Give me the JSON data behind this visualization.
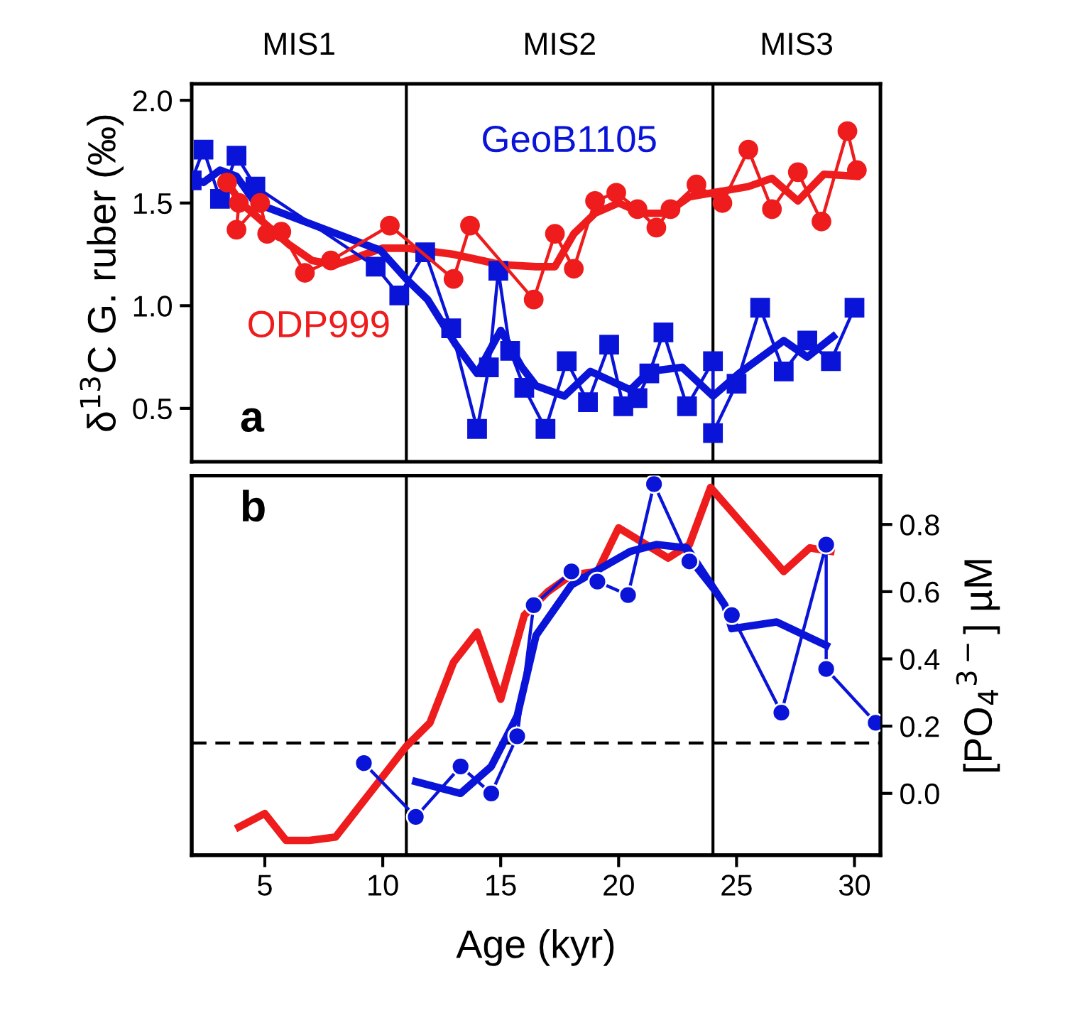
{
  "chart_data": [
    {
      "type": "line",
      "ylabel": "δ$^{13}$C G. ruber (‰)",
      "annotations": [
        "a",
        "MIS1",
        "MIS2",
        "MIS3"
      ],
      "xlim": [
        1.9,
        31.1
      ],
      "ylim": [
        0.24,
        2.08
      ],
      "yticks": [
        {
          "value": 0.5,
          "label": "0.5"
        },
        {
          "value": 1.0,
          "label": "1.0"
        },
        {
          "value": 1.5,
          "label": "1.5"
        },
        {
          "value": 2.0,
          "label": "2.0"
        }
      ],
      "tick_labels": "y",
      "grid": false,
      "legend": false,
      "ref_lines": [
        {
          "axis": "x",
          "value": 11,
          "color": "#000000",
          "line_style": "solid"
        },
        {
          "axis": "x",
          "value": 24,
          "color": "#000000",
          "line_style": "solid"
        }
      ],
      "series": [
        {
          "name": "ODP999",
          "color": "#ee1c1c",
          "marker": "circle",
          "x": [
            3.4,
            3.9,
            3.8,
            4.8,
            5.1,
            5.7,
            6.7,
            7.8,
            10.3,
            13.0,
            13.7,
            16.4,
            17.3,
            18.1,
            19.0,
            19.9,
            20.8,
            21.6,
            22.2,
            23.3,
            24.4,
            25.5,
            26.5,
            27.6,
            28.6,
            29.7,
            30.1
          ],
          "values": [
            1.6,
            1.5,
            1.37,
            1.5,
            1.35,
            1.36,
            1.16,
            1.22,
            1.39,
            1.13,
            1.39,
            1.03,
            1.35,
            1.18,
            1.51,
            1.55,
            1.47,
            1.38,
            1.47,
            1.59,
            1.5,
            1.76,
            1.47,
            1.65,
            1.41,
            1.85,
            1.66
          ]
        },
        {
          "color": "#ee1c1c",
          "marker": "none",
          "x": [
            3.4,
            4.0,
            5.0,
            6.0,
            7.0,
            8.0,
            9.0,
            10.0,
            11.0,
            13.0,
            15.0,
            16.5,
            17.3,
            18.1,
            19.0,
            20.0,
            21.0,
            22.0,
            23.0,
            24.0,
            25.5,
            26.5,
            27.6,
            28.7,
            30.1
          ],
          "values": [
            1.6,
            1.5,
            1.4,
            1.3,
            1.22,
            1.2,
            1.24,
            1.28,
            1.28,
            1.25,
            1.2,
            1.19,
            1.19,
            1.35,
            1.45,
            1.5,
            1.45,
            1.45,
            1.53,
            1.55,
            1.58,
            1.62,
            1.51,
            1.64,
            1.63
          ]
        },
        {
          "name": "GeoB1105",
          "color": "#0a14d8",
          "marker": "square",
          "x": [
            1.9,
            2.4,
            3.1,
            3.8,
            4.6,
            9.7,
            10.7,
            11.8,
            12.9,
            14.0,
            14.5,
            14.9,
            15.4,
            16.0,
            16.9,
            17.8,
            18.7,
            19.6,
            20.2,
            20.8,
            21.3,
            21.9,
            22.9,
            24.0,
            24.0,
            25.0,
            26.0,
            27.0,
            28.0,
            29.0,
            30.0
          ],
          "values": [
            1.61,
            1.76,
            1.52,
            1.73,
            1.58,
            1.19,
            1.05,
            1.26,
            0.89,
            0.4,
            0.7,
            1.17,
            0.78,
            0.6,
            0.4,
            0.73,
            0.53,
            0.81,
            0.51,
            0.55,
            0.67,
            0.87,
            0.51,
            0.73,
            0.38,
            0.62,
            0.99,
            0.68,
            0.83,
            0.73,
            0.99
          ]
        },
        {
          "color": "#0a14d8",
          "marker": "none",
          "x": [
            1.9,
            2.4,
            3.1,
            3.8,
            4.6,
            6.9,
            9.9,
            11.0,
            11.9,
            13.1,
            14.0,
            15.0,
            15.9,
            16.5,
            17.7,
            18.8,
            20.5,
            21.3,
            22.7,
            24.0,
            25.1,
            27.0,
            28.0,
            29.1
          ],
          "values": [
            1.62,
            1.6,
            1.66,
            1.63,
            1.5,
            1.4,
            1.27,
            1.13,
            1.03,
            0.81,
            0.67,
            0.88,
            0.7,
            0.61,
            0.56,
            0.68,
            0.59,
            0.68,
            0.7,
            0.56,
            0.67,
            0.83,
            0.75,
            0.85
          ]
        }
      ]
    },
    {
      "type": "line",
      "xlabel": "Age (kyr)",
      "y2label": "[PO$_{4}$$^{3−}$] µM",
      "annotations": [
        "b"
      ],
      "xlim": [
        1.9,
        31.1
      ],
      "xticks": [
        5,
        10,
        15,
        20,
        25,
        30
      ],
      "y2lim": [
        -0.184,
        0.945
      ],
      "y2ticks": [
        {
          "value": 0.0,
          "label": "0.0"
        },
        {
          "value": 0.2,
          "label": "0.2"
        },
        {
          "value": 0.4,
          "label": "0.4"
        },
        {
          "value": 0.6,
          "label": "0.6"
        },
        {
          "value": 0.8,
          "label": "0.8"
        }
      ],
      "grid": false,
      "legend": false,
      "ref_lines": [
        {
          "axis": "x",
          "value": 11,
          "color": "#000000",
          "line_style": "solid"
        },
        {
          "axis": "x",
          "value": 24,
          "color": "#000000",
          "line_style": "solid"
        },
        {
          "axis": "y2",
          "value": 0.15,
          "color": "#000000",
          "line_style": "dashed"
        }
      ],
      "series": [
        {
          "color": "#ee1c1c",
          "marker": "none",
          "axis": "y2",
          "x": [
            3.9,
            5.0,
            5.9,
            6.9,
            8.0,
            11.0,
            12.0,
            13.0,
            14.0,
            15.0,
            16.0,
            17.0,
            18.0,
            19.1,
            20.0,
            22.1,
            23.0,
            23.9,
            27.0,
            28.1,
            29.0
          ],
          "values": [
            -0.1,
            -0.06,
            -0.14,
            -0.14,
            -0.13,
            0.14,
            0.21,
            0.39,
            0.48,
            0.28,
            0.53,
            0.6,
            0.65,
            0.66,
            0.79,
            0.7,
            0.74,
            0.91,
            0.66,
            0.73,
            0.72
          ]
        },
        {
          "color": "#0a14d8",
          "marker": "circle",
          "axis": "y2",
          "x": [
            9.2,
            11.4,
            13.3,
            14.6,
            15.7,
            16.4,
            18.0,
            19.1,
            20.4,
            21.5,
            23.0,
            24.8,
            26.9,
            28.8,
            28.8,
            30.9
          ],
          "values": [
            0.09,
            -0.07,
            0.08,
            0.0,
            0.17,
            0.56,
            0.66,
            0.63,
            0.59,
            0.92,
            0.69,
            0.53,
            0.24,
            0.74,
            0.37,
            0.21
          ]
        },
        {
          "color": "#0a14d8",
          "marker": "none",
          "axis": "y2",
          "x": [
            11.4,
            13.3,
            14.6,
            15.7,
            16.5,
            18.0,
            20.5,
            21.6,
            22.9,
            24.5,
            24.8,
            26.7,
            28.8
          ],
          "values": [
            0.035,
            0.0,
            0.08,
            0.23,
            0.47,
            0.62,
            0.72,
            0.74,
            0.73,
            0.56,
            0.49,
            0.51,
            0.44
          ]
        }
      ]
    }
  ]
}
